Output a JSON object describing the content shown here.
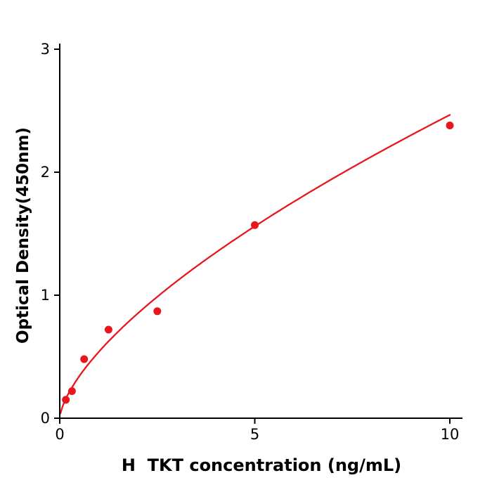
{
  "page": {
    "background_color": "#ffffff"
  },
  "chart_data": {
    "type": "scatter",
    "title": "",
    "xlabel": "H  TKT concentration (ng/mL)",
    "ylabel": "Optical Density(450nm)",
    "x": [
      0.156,
      0.313,
      0.625,
      1.25,
      2.5,
      5,
      10
    ],
    "y": [
      0.15,
      0.22,
      0.48,
      0.72,
      0.87,
      1.57,
      2.38
    ],
    "xlim": [
      0,
      10
    ],
    "ylim": [
      0,
      3
    ],
    "xticks": [
      "0",
      "5",
      "10"
    ],
    "yticks": [
      "0",
      "1",
      "2",
      "3"
    ],
    "xtick_values": [
      0,
      5,
      10
    ],
    "ytick_values": [
      0,
      1,
      2,
      3
    ],
    "grid": "off",
    "legend": "none",
    "fit_type": "power",
    "point_color": "#e8171d",
    "curve_color": "#e8171d",
    "axis_color": "#000000"
  }
}
